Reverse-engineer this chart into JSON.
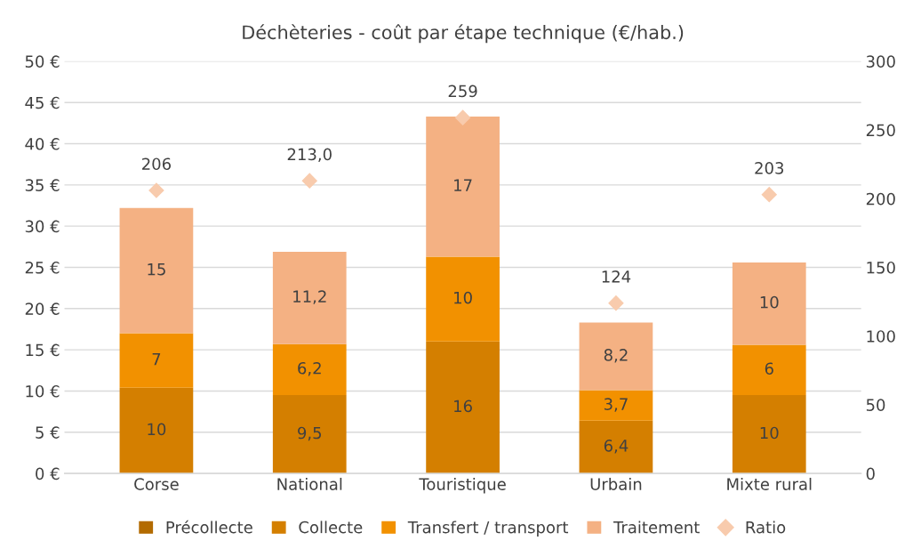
{
  "chart_data": {
    "type": "bar",
    "stacked": true,
    "title": "Déchèteries - coût par étape technique (€/hab.)",
    "categories": [
      "Corse",
      "National",
      "Touristique",
      "Urbain",
      "Mixte rural"
    ],
    "series": [
      {
        "name": "Précollecte",
        "color": "#b36b00",
        "values": [
          0,
          0,
          0,
          0,
          0
        ],
        "value_labels": [
          null,
          null,
          null,
          null,
          null
        ]
      },
      {
        "name": "Collecte",
        "color": "#d47f00",
        "values": [
          10.4,
          9.5,
          16.0,
          6.4,
          9.5
        ],
        "value_labels": [
          "10",
          "9,5",
          "16",
          "6,4",
          "10"
        ]
      },
      {
        "name": "Transfert / transport",
        "color": "#f29100",
        "values": [
          6.6,
          6.2,
          10.3,
          3.7,
          6.1
        ],
        "value_labels": [
          "7",
          "6,2",
          "10",
          "3,7",
          "6"
        ]
      },
      {
        "name": "Traitement",
        "color": "#f4b183",
        "values": [
          15.2,
          11.2,
          17.0,
          8.2,
          10.0
        ],
        "value_labels": [
          "15",
          "11,2",
          "17",
          "8,2",
          "10"
        ]
      },
      {
        "name": "Ratio",
        "type": "scatter",
        "axis": "y2",
        "marker": "diamond",
        "color": "#f8cbad",
        "values": [
          206,
          213.0,
          259,
          124,
          203
        ],
        "value_labels": [
          "206",
          "213,0",
          "259",
          "124",
          "203"
        ]
      }
    ],
    "ylim": [
      0,
      50
    ],
    "yticks": [
      {
        "value": 0,
        "label": "0 €"
      },
      {
        "value": 5,
        "label": "5 €"
      },
      {
        "value": 10,
        "label": "10 €"
      },
      {
        "value": 15,
        "label": "15 €"
      },
      {
        "value": 20,
        "label": "20 €"
      },
      {
        "value": 25,
        "label": "25 €"
      },
      {
        "value": 30,
        "label": "30 €"
      },
      {
        "value": 35,
        "label": "35 €"
      },
      {
        "value": 40,
        "label": "40 €"
      },
      {
        "value": 45,
        "label": "45 €"
      },
      {
        "value": 50,
        "label": "50 €"
      }
    ],
    "y2lim": [
      0,
      300
    ],
    "y2ticks": [
      0,
      50,
      100,
      150,
      200,
      250,
      300
    ],
    "grid": "y",
    "legend": "bottom"
  }
}
